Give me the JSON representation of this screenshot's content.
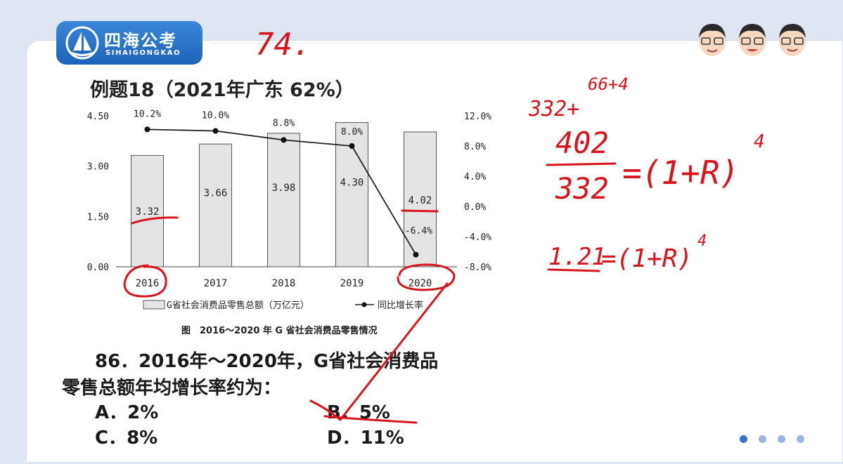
{
  "brand": {
    "name_cn": "四海公考",
    "name_en": "SIHAIGONGKAO"
  },
  "slide": {
    "title": "例题18（2021年广东 62%）",
    "caption": "图　2016～2020 年 G 省社会消费品零售情况"
  },
  "chart_data": {
    "type": "bar+line",
    "categories": [
      "2016",
      "2017",
      "2018",
      "2019",
      "2020"
    ],
    "series": [
      {
        "name": "G省社会消费品零售总额（万亿元）",
        "type": "bar",
        "axis": "left",
        "values": [
          3.32,
          3.66,
          3.98,
          4.3,
          4.02
        ],
        "labels": [
          "3.32",
          "3.66",
          "3.98",
          "4.30",
          "4.02"
        ]
      },
      {
        "name": "同比增长率",
        "type": "line",
        "axis": "right",
        "values": [
          10.2,
          10.0,
          8.8,
          8.0,
          -6.4
        ],
        "labels": [
          "10.2%",
          "10.0%",
          "8.8%",
          "8.0%",
          "-6.4%"
        ]
      }
    ],
    "left_axis": {
      "range": [
        0,
        4.5
      ],
      "ticks": [
        "0.00",
        "1.50",
        "3.00",
        "4.50"
      ],
      "tick_values": [
        0,
        1.5,
        3.0,
        4.5
      ]
    },
    "right_axis": {
      "range": [
        -8,
        12
      ],
      "ticks": [
        "-8.0%",
        "-4.0%",
        "0.0%",
        "4.0%",
        "8.0%",
        "12.0%"
      ],
      "tick_values": [
        -8,
        -4,
        0,
        4,
        8,
        12
      ]
    },
    "legend": {
      "placement": "bottom-center"
    },
    "title": "图　2016～2020 年 G 省社会消费品零售情况"
  },
  "question": {
    "stem_line1": "86．2016年～2020年，G省社会消费品",
    "stem_line2": "零售总额年均增长率约为：",
    "options": {
      "a": "A．2%",
      "b": "B．5%",
      "c": "C．8%",
      "d": "D．11%"
    }
  },
  "handwriting": {
    "note_top": "74.",
    "note_sum": "332+",
    "note_expr": "66+4",
    "fraction_top": "402",
    "fraction_bottom": "332",
    "equation1": "=(1+R)",
    "exp1": "4",
    "ratio": "1.21",
    "equation2": "=(1+R)",
    "exp2": "4",
    "ink_color": "#d8141e"
  },
  "pager": {
    "dots": 4,
    "active": 0,
    "active_color": "#3b73c8",
    "inactive_color": "#9bb3df"
  }
}
